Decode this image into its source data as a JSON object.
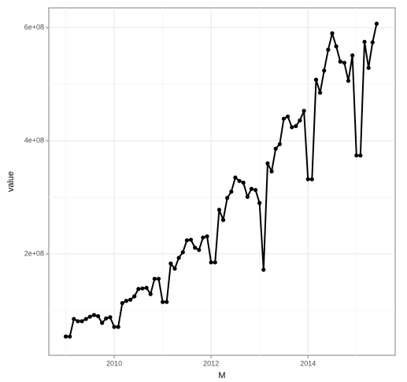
{
  "chart_data": {
    "type": "line",
    "x_label": "M",
    "y_label": "value",
    "x": [
      2009,
      2009.083,
      2009.167,
      2009.25,
      2009.333,
      2009.417,
      2009.5,
      2009.583,
      2009.667,
      2009.75,
      2009.833,
      2009.917,
      2010,
      2010.083,
      2010.167,
      2010.25,
      2010.333,
      2010.417,
      2010.5,
      2010.583,
      2010.667,
      2010.75,
      2010.833,
      2010.917,
      2011,
      2011.083,
      2011.167,
      2011.25,
      2011.333,
      2011.417,
      2011.5,
      2011.583,
      2011.667,
      2011.75,
      2011.833,
      2011.917,
      2012,
      2012.083,
      2012.167,
      2012.25,
      2012.333,
      2012.417,
      2012.5,
      2012.583,
      2012.667,
      2012.75,
      2012.833,
      2012.917,
      2013,
      2013.083,
      2013.167,
      2013.25,
      2013.333,
      2013.417,
      2013.5,
      2013.583,
      2013.667,
      2013.75,
      2013.833,
      2013.917,
      2014,
      2014.083,
      2014.167,
      2014.25,
      2014.333,
      2014.417,
      2014.5,
      2014.583,
      2014.667,
      2014.75,
      2014.833,
      2014.917,
      2015,
      2015.083,
      2015.167,
      2015.25,
      2015.333,
      2015.417
    ],
    "series": [
      {
        "name": "value",
        "color": "#000000",
        "values": [
          54000000,
          54000000,
          85000000,
          81000000,
          81000000,
          85000000,
          89000000,
          92000000,
          90000000,
          78000000,
          86000000,
          88000000,
          71000000,
          71000000,
          113000000,
          117000000,
          119000000,
          125000000,
          138000000,
          139000000,
          140000000,
          129000000,
          156000000,
          156000000,
          115000000,
          115000000,
          183000000,
          174000000,
          193000000,
          203000000,
          224000000,
          225000000,
          211000000,
          207000000,
          229000000,
          231000000,
          185000000,
          185000000,
          278000000,
          260000000,
          299000000,
          310000000,
          335000000,
          329000000,
          326000000,
          301000000,
          315000000,
          313000000,
          290000000,
          172000000,
          360000000,
          346000000,
          386000000,
          394000000,
          439000000,
          443000000,
          424000000,
          426000000,
          436000000,
          453000000,
          332000000,
          332000000,
          508000000,
          485000000,
          524000000,
          561000000,
          590000000,
          567000000,
          540000000,
          538000000,
          506000000,
          551000000,
          374000000,
          374000000,
          575000000,
          529000000,
          574000000,
          607000000
        ]
      }
    ],
    "xlim": [
      2008.65,
      2015.8
    ],
    "xticks": [
      2010,
      2012,
      2014
    ],
    "ylim": [
      20800000,
      635000000
    ],
    "yticks": [
      {
        "value": 200000000,
        "label": "2e+08"
      },
      {
        "value": 400000000,
        "label": "4e+08"
      },
      {
        "value": 600000000,
        "label": "6e+08"
      }
    ],
    "grid": true
  }
}
